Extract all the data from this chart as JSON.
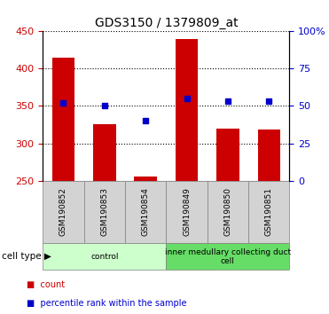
{
  "title": "GDS3150 / 1379809_at",
  "samples": [
    "GSM190852",
    "GSM190853",
    "GSM190854",
    "GSM190849",
    "GSM190850",
    "GSM190851"
  ],
  "counts": [
    415,
    325,
    255,
    440,
    320,
    318
  ],
  "percentiles": [
    52,
    50,
    40,
    55,
    53,
    53
  ],
  "ylim_left": [
    250,
    450
  ],
  "ylim_right": [
    0,
    100
  ],
  "yticks_left": [
    250,
    300,
    350,
    400,
    450
  ],
  "yticks_right": [
    0,
    25,
    50,
    75,
    100
  ],
  "ytick_labels_right": [
    "0",
    "25",
    "50",
    "75",
    "100%"
  ],
  "bar_color": "#cc0000",
  "dot_color": "#0000cc",
  "bar_bottom": 250,
  "groups": [
    {
      "label": "control",
      "start": 0,
      "end": 3,
      "color": "#ccffcc"
    },
    {
      "label": "inner medullary collecting duct\ncell",
      "start": 3,
      "end": 6,
      "color": "#66dd66"
    }
  ],
  "legend_items": [
    {
      "label": "count",
      "color": "#cc0000"
    },
    {
      "label": "percentile rank within the sample",
      "color": "#0000cc"
    }
  ],
  "cell_type_label": "cell type",
  "left_tick_color": "#cc0000",
  "right_tick_color": "#0000cc"
}
